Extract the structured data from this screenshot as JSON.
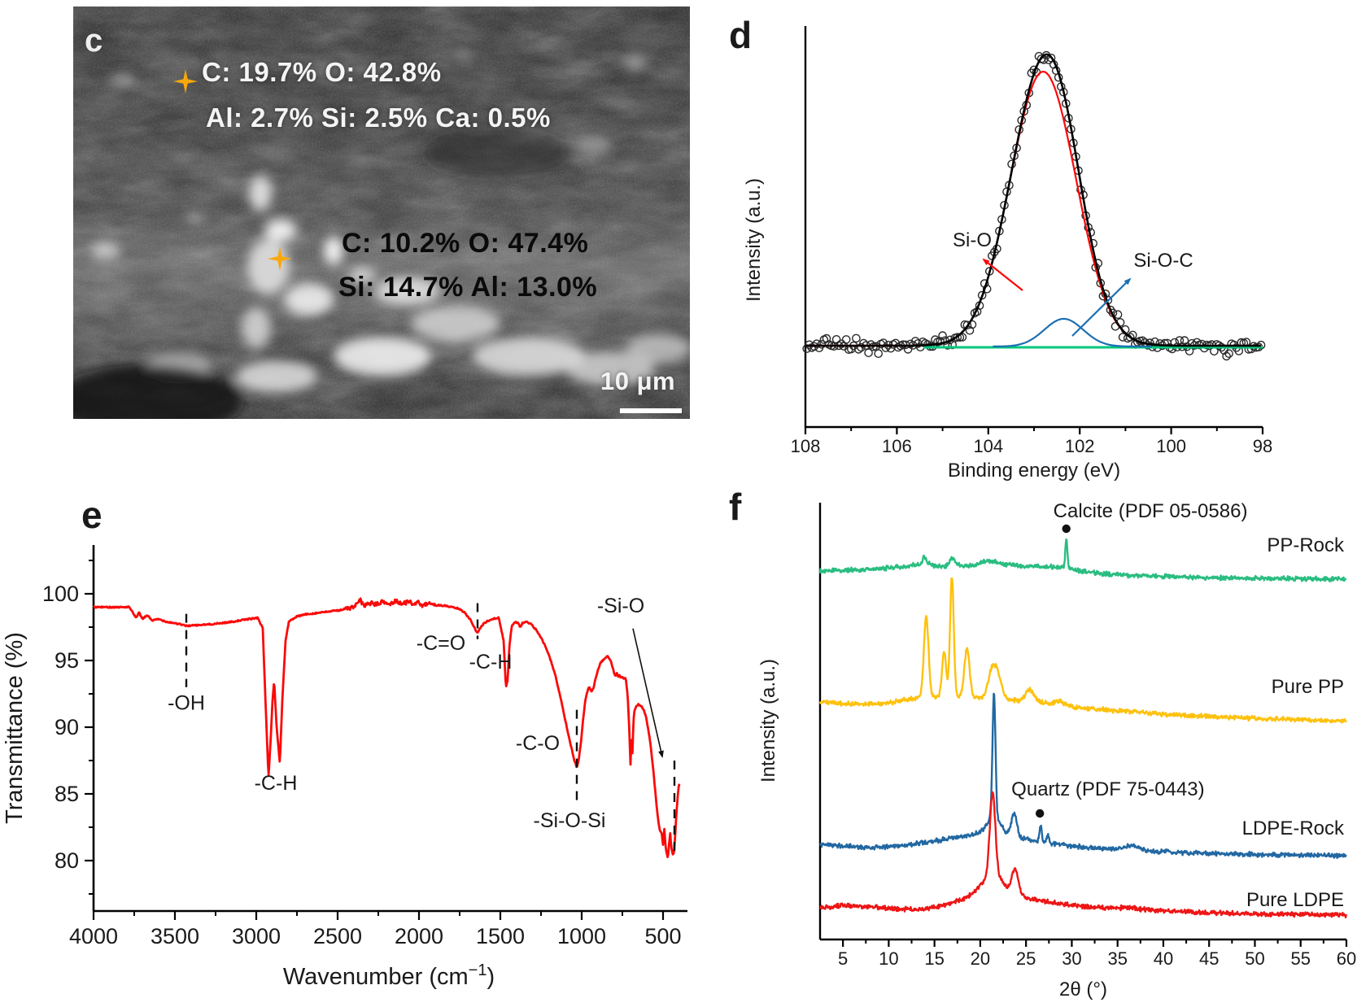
{
  "panel_c": {
    "label": "c",
    "spot1_line1": "C: 19.7%   O: 42.8%",
    "spot1_line2": "Al: 2.7%  Si: 2.5%  Ca: 0.5%",
    "spot2_line1": "C: 10.2%   O: 47.4%",
    "spot2_line2": "Si: 14.7%  Al: 13.0%",
    "scale_bar": "10 μm",
    "marker_color": "#f7a80d"
  },
  "chart_data": [
    {
      "id": "xps",
      "panel_label": "d",
      "type": "scatter",
      "xlabel": "Binding energy (eV)",
      "ylabel": "Intensity (a.u.)",
      "x_range": [
        108,
        98
      ],
      "x_ticks": [
        108,
        106,
        104,
        102,
        100,
        98
      ],
      "x_minor_ticks": [
        107,
        105,
        103,
        101,
        99
      ],
      "axis_reversed": true,
      "series": [
        {
          "name": "measured data",
          "style": "open-circles",
          "color": "#2b2b2b"
        },
        {
          "name": "fit envelope",
          "style": "line",
          "color": "#000000"
        },
        {
          "name": "Si-O component",
          "style": "line",
          "color": "#fb0909",
          "peak_center_eV": 102.8,
          "fwhm_eV": 1.7,
          "relative_height": 1.0
        },
        {
          "name": "Si-O-C component",
          "style": "line",
          "color": "#1d6fb2",
          "peak_center_eV": 102.35,
          "fwhm_eV": 1.0,
          "relative_height": 0.101
        },
        {
          "name": "baseline",
          "style": "line",
          "color": "#00c77d"
        }
      ],
      "annotations": [
        {
          "text": "Si-O",
          "arrow_color": "#fb0909"
        },
        {
          "text": "Si-O-C",
          "arrow_color": "#1d6fb2"
        }
      ]
    },
    {
      "id": "ftir",
      "panel_label": "e",
      "type": "line",
      "xlabel_parts": [
        "Wavenumber (cm",
        "−1",
        ")"
      ],
      "ylabel": "Transmittance (%)",
      "x_range": [
        4000,
        350
      ],
      "x_ticks": [
        4000,
        3500,
        3000,
        2500,
        2000,
        1500,
        1000,
        500
      ],
      "x_minor_ticks": [
        3750,
        3250,
        2750,
        2250,
        1750,
        1250,
        750
      ],
      "y_ticks": [
        100,
        95,
        90,
        85,
        80
      ],
      "y_minor_ticks": [
        102.5,
        97.5,
        92.5,
        87.5,
        82.5,
        77.5
      ],
      "color": "#fb0909",
      "curve_anchors": [
        [
          4000,
          99.0
        ],
        [
          3780,
          99.0
        ],
        [
          3740,
          98.2
        ],
        [
          3720,
          98.6
        ],
        [
          3700,
          98.1
        ],
        [
          3670,
          98.4
        ],
        [
          3640,
          98.0
        ],
        [
          3600,
          98.1
        ],
        [
          3550,
          97.9
        ],
        [
          3500,
          97.8
        ],
        [
          3430,
          97.6
        ],
        [
          3350,
          97.65
        ],
        [
          3250,
          97.75
        ],
        [
          3150,
          97.9
        ],
        [
          3050,
          98.1
        ],
        [
          2990,
          98.2
        ],
        [
          2960,
          97.4
        ],
        [
          2945,
          92.5
        ],
        [
          2925,
          86.2
        ],
        [
          2912,
          89.0
        ],
        [
          2900,
          92.0
        ],
        [
          2890,
          93.5
        ],
        [
          2875,
          90.0
        ],
        [
          2855,
          87.3
        ],
        [
          2840,
          92.0
        ],
        [
          2820,
          96.5
        ],
        [
          2800,
          97.9
        ],
        [
          2750,
          98.3
        ],
        [
          2700,
          98.45
        ],
        [
          2600,
          98.6
        ],
        [
          2500,
          98.75
        ],
        [
          2440,
          98.9
        ],
        [
          2400,
          99.0
        ],
        [
          2360,
          99.5
        ],
        [
          2340,
          99.1
        ],
        [
          2300,
          99.3
        ],
        [
          2260,
          99.2
        ],
        [
          2220,
          99.4
        ],
        [
          2180,
          99.2
        ],
        [
          2140,
          99.5
        ],
        [
          2100,
          99.2
        ],
        [
          2060,
          99.5
        ],
        [
          2030,
          99.1
        ],
        [
          2000,
          99.4
        ],
        [
          1975,
          99.0
        ],
        [
          1950,
          99.3
        ],
        [
          1920,
          99.1
        ],
        [
          1880,
          99.15
        ],
        [
          1840,
          99.1
        ],
        [
          1800,
          99.0
        ],
        [
          1760,
          98.9
        ],
        [
          1720,
          98.6
        ],
        [
          1680,
          98.0
        ],
        [
          1650,
          97.2
        ],
        [
          1640,
          97.1
        ],
        [
          1625,
          97.4
        ],
        [
          1600,
          97.8
        ],
        [
          1570,
          98.0
        ],
        [
          1540,
          98.15
        ],
        [
          1510,
          98.2
        ],
        [
          1480,
          96.5
        ],
        [
          1466,
          93.0
        ],
        [
          1455,
          93.5
        ],
        [
          1445,
          96.0
        ],
        [
          1430,
          97.6
        ],
        [
          1410,
          97.9
        ],
        [
          1390,
          97.8
        ],
        [
          1377,
          97.5
        ],
        [
          1365,
          97.8
        ],
        [
          1340,
          97.9
        ],
        [
          1310,
          97.7
        ],
        [
          1280,
          97.3
        ],
        [
          1250,
          96.7
        ],
        [
          1220,
          96.0
        ],
        [
          1190,
          95.0
        ],
        [
          1160,
          93.8
        ],
        [
          1130,
          92.2
        ],
        [
          1100,
          90.5
        ],
        [
          1070,
          88.8
        ],
        [
          1045,
          87.5
        ],
        [
          1030,
          87.0
        ],
        [
          1018,
          87.6
        ],
        [
          1005,
          88.8
        ],
        [
          992,
          90.5
        ],
        [
          980,
          91.8
        ],
        [
          968,
          92.6
        ],
        [
          955,
          93.0
        ],
        [
          940,
          92.7
        ],
        [
          928,
          92.9
        ],
        [
          915,
          93.6
        ],
        [
          900,
          94.3
        ],
        [
          885,
          94.8
        ],
        [
          870,
          95.0
        ],
        [
          855,
          95.2
        ],
        [
          840,
          95.3
        ],
        [
          825,
          95.1
        ],
        [
          810,
          94.5
        ],
        [
          800,
          94.0
        ],
        [
          790,
          93.8
        ],
        [
          782,
          94.1
        ],
        [
          775,
          93.7
        ],
        [
          768,
          93.9
        ],
        [
          760,
          93.7
        ],
        [
          750,
          93.8
        ],
        [
          740,
          93.6
        ],
        [
          730,
          93.7
        ],
        [
          718,
          92.5
        ],
        [
          708,
          90.0
        ],
        [
          700,
          87.2
        ],
        [
          694,
          89.5
        ],
        [
          688,
          88.0
        ],
        [
          682,
          90.5
        ],
        [
          676,
          91.2
        ],
        [
          665,
          91.6
        ],
        [
          650,
          91.7
        ],
        [
          635,
          91.6
        ],
        [
          620,
          91.3
        ],
        [
          605,
          90.8
        ],
        [
          590,
          89.8
        ],
        [
          575,
          88.5
        ],
        [
          560,
          86.8
        ],
        [
          545,
          84.8
        ],
        [
          530,
          83.0
        ],
        [
          518,
          82.2
        ],
        [
          508,
          82.0
        ],
        [
          500,
          81.2
        ],
        [
          492,
          82.4
        ],
        [
          484,
          81.0
        ],
        [
          476,
          80.5
        ],
        [
          470,
          80.2
        ],
        [
          463,
          81.3
        ],
        [
          456,
          82.0
        ],
        [
          449,
          81.0
        ],
        [
          443,
          80.6
        ],
        [
          437,
          80.4
        ],
        [
          431,
          80.8
        ],
        [
          425,
          82.0
        ],
        [
          418,
          83.5
        ],
        [
          410,
          84.8
        ],
        [
          404,
          85.5
        ],
        [
          400,
          85.8
        ]
      ],
      "bands": [
        {
          "label": "-OH",
          "wavenumber": 3430,
          "dash_T": [
            98.5,
            93.0
          ],
          "label_at": [
            3430,
            91.3
          ]
        },
        {
          "label": "-C-H",
          "wavenumber": 2900,
          "label_at": [
            2880,
            85.3
          ]
        },
        {
          "label": "-C=O",
          "wavenumber": 1640,
          "dash_T": [
            99.3,
            96.6
          ],
          "label_at": [
            1865,
            95.8
          ]
        },
        {
          "label": "-C-H",
          "wavenumber": 1460,
          "label_at": [
            1560,
            94.4
          ]
        },
        {
          "label": "-C-O",
          "wavenumber": 1100,
          "label_at": [
            1270,
            88.3
          ]
        },
        {
          "label": "-Si-O-Si",
          "wavenumber": 1030,
          "dash_T": [
            91.3,
            84.0
          ],
          "label_at": [
            1075,
            82.5
          ]
        },
        {
          "label": "-Si-O",
          "wavenumber": 470,
          "dash_at": 430,
          "dash_T": [
            87.5,
            80.3
          ],
          "label_at": [
            760,
            98.6
          ],
          "arrow": [
            [
              685,
              97.4
            ],
            [
              505,
              87.8
            ]
          ]
        }
      ]
    },
    {
      "id": "xrd",
      "panel_label": "f",
      "type": "line",
      "xlabel": "2θ (°)",
      "ylabel": "Intensity (a.u.)",
      "x_range": [
        2.5,
        60
      ],
      "x_ticks": [
        5,
        10,
        15,
        20,
        25,
        30,
        35,
        40,
        45,
        50,
        55,
        60
      ],
      "x_minor_ticks": [
        7.5,
        12.5,
        17.5,
        22.5,
        27.5,
        32.5,
        37.5,
        42.5,
        47.5,
        52.5,
        57.5
      ],
      "series": [
        {
          "name": "PP-Rock",
          "color": "#2abd81",
          "base": [
            [
              2.5,
              453
            ],
            [
              8,
              455
            ],
            [
              12,
              459
            ],
            [
              14,
              462
            ],
            [
              16,
              458
            ],
            [
              17,
              462
            ],
            [
              19,
              459
            ],
            [
              22,
              462
            ],
            [
              25,
              459
            ],
            [
              28,
              458
            ],
            [
              29.4,
              457
            ],
            [
              31,
              453
            ],
            [
              34,
              449
            ],
            [
              38,
              447
            ],
            [
              44,
              445
            ],
            [
              50,
              444
            ],
            [
              60,
              443
            ]
          ],
          "peaks": [
            [
              13.9,
              9,
              0.2
            ],
            [
              16.9,
              7,
              0.25
            ],
            [
              20.8,
              4,
              0.8
            ],
            [
              29.4,
              36,
              0.11
            ]
          ]
        },
        {
          "name": "Pure PP",
          "color": "#fec10d",
          "base": [
            [
              2.5,
              292
            ],
            [
              6,
              289
            ],
            [
              10,
              291
            ],
            [
              13,
              297
            ],
            [
              15,
              298
            ],
            [
              17,
              299
            ],
            [
              20,
              297
            ],
            [
              23,
              295
            ],
            [
              25.5,
              293
            ],
            [
              28,
              289
            ],
            [
              31,
              285
            ],
            [
              35,
              281
            ],
            [
              40,
              277
            ],
            [
              45,
              274
            ],
            [
              50,
              272
            ],
            [
              55,
              270
            ],
            [
              60,
              269
            ]
          ],
          "peaks": [
            [
              14.1,
              100,
              0.25
            ],
            [
              16.05,
              56,
              0.22
            ],
            [
              16.9,
              148,
              0.2
            ],
            [
              18.55,
              60,
              0.28
            ],
            [
              21.2,
              26,
              0.4
            ],
            [
              21.85,
              30,
              0.45
            ],
            [
              25.4,
              14,
              0.45
            ],
            [
              28.6,
              5,
              0.5
            ]
          ]
        },
        {
          "name": "LDPE-Rock",
          "color": "#2268a2",
          "base": [
            [
              2.5,
              117
            ],
            [
              5,
              115
            ],
            [
              8,
              113
            ],
            [
              11,
              115
            ],
            [
              14,
              119
            ],
            [
              17,
              125
            ],
            [
              19,
              129
            ],
            [
              20.5,
              131
            ],
            [
              22,
              129
            ],
            [
              24,
              125
            ],
            [
              26,
              121
            ],
            [
              28,
              118
            ],
            [
              30,
              115
            ],
            [
              33,
              112
            ],
            [
              36,
              111
            ],
            [
              40,
              108
            ],
            [
              44,
              106
            ],
            [
              48,
              105
            ],
            [
              52,
              104
            ],
            [
              56,
              104
            ],
            [
              60,
              103
            ]
          ],
          "peaks": [
            [
              21.5,
              150,
              0.16
            ],
            [
              21.5,
              22,
              0.7
            ],
            [
              23.7,
              30,
              0.3
            ],
            [
              26.6,
              20,
              0.13
            ],
            [
              27.4,
              9,
              0.15
            ],
            [
              36.5,
              5,
              0.7
            ]
          ]
        },
        {
          "name": "Pure LDPE",
          "color": "#ee1616",
          "base": [
            [
              2.5,
              39
            ],
            [
              5,
              42
            ],
            [
              8,
              40
            ],
            [
              11,
              37
            ],
            [
              14,
              38
            ],
            [
              16,
              42
            ],
            [
              18,
              49
            ],
            [
              19.5,
              57
            ],
            [
              21,
              61
            ],
            [
              22.5,
              59
            ],
            [
              24,
              55
            ],
            [
              26,
              49
            ],
            [
              28,
              45
            ],
            [
              30,
              42
            ],
            [
              33,
              39
            ],
            [
              36,
              39
            ],
            [
              40,
              35
            ],
            [
              44,
              33
            ],
            [
              48,
              32
            ],
            [
              52,
              31
            ],
            [
              56,
              31
            ],
            [
              60,
              30
            ]
          ],
          "peaks": [
            [
              21.35,
              100,
              0.3
            ],
            [
              21.35,
              20,
              1.0
            ],
            [
              23.8,
              30,
              0.35
            ]
          ]
        }
      ],
      "annotations": [
        {
          "text": "Calcite (PDF 05-0586)",
          "two_theta": 29.4,
          "marker": "dot"
        },
        {
          "text": "Quartz (PDF 75-0443)",
          "two_theta": 26.6,
          "marker": "dot"
        }
      ]
    }
  ]
}
